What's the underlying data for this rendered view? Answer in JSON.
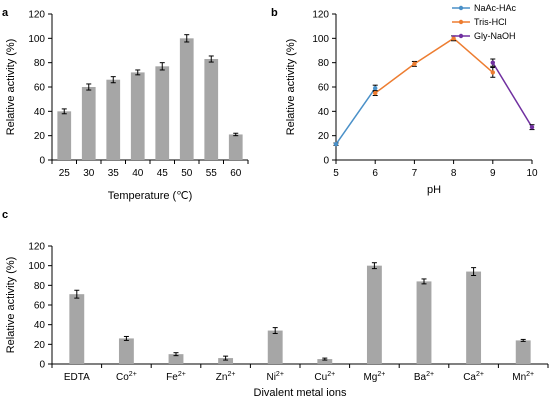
{
  "chart_data": [
    {
      "panel": "a",
      "type": "bar",
      "xlabel": "Temperature (℃)",
      "ylabel": "Relative activity (%)",
      "categories": [
        "25",
        "30",
        "35",
        "40",
        "45",
        "50",
        "55",
        "60"
      ],
      "values": [
        40,
        60,
        66,
        72,
        77,
        100,
        83,
        21
      ],
      "errors": [
        2,
        2.5,
        2.5,
        2,
        3,
        3,
        2.5,
        1
      ],
      "ylim": [
        0,
        120
      ],
      "yticks": [
        0,
        20,
        40,
        60,
        80,
        100,
        120
      ],
      "grid": false,
      "bar_color": "#a6a6a6"
    },
    {
      "panel": "b",
      "type": "line",
      "xlabel": "pH",
      "ylabel": "Relative activity (%)",
      "xlim": [
        5,
        10
      ],
      "ylim": [
        0,
        120
      ],
      "xticks": [
        5,
        6,
        7,
        8,
        9,
        10
      ],
      "yticks": [
        0,
        20,
        40,
        60,
        80,
        100,
        120
      ],
      "grid": false,
      "legend_position": "top-right",
      "series": [
        {
          "name": "NaAc-HAc",
          "color": "#4a90c8",
          "x": [
            5,
            6
          ],
          "values": [
            13,
            59
          ],
          "errors": [
            1,
            2.5
          ]
        },
        {
          "name": "Tris-HCl",
          "color": "#ed7d31",
          "x": [
            6,
            7,
            8,
            9
          ],
          "values": [
            55,
            79,
            100,
            72
          ],
          "errors": [
            2,
            2,
            2,
            4
          ]
        },
        {
          "name": "Gly-NaOH",
          "color": "#7030a0",
          "x": [
            9,
            10
          ],
          "values": [
            80,
            27
          ],
          "errors": [
            3,
            2
          ]
        }
      ]
    },
    {
      "panel": "c",
      "type": "bar",
      "xlabel": "Divalent metal ions",
      "ylabel": "Relative activity (%)",
      "categories": [
        {
          "base": "EDTA",
          "sup": ""
        },
        {
          "base": "Co",
          "sup": "2+"
        },
        {
          "base": "Fe",
          "sup": "2+"
        },
        {
          "base": "Zn",
          "sup": "2+"
        },
        {
          "base": "Ni",
          "sup": "2+"
        },
        {
          "base": "Cu",
          "sup": "2+"
        },
        {
          "base": "Mg",
          "sup": "2+"
        },
        {
          "base": "Ba",
          "sup": "2+"
        },
        {
          "base": "Ca",
          "sup": "2+"
        },
        {
          "base": "Mn",
          "sup": "2+"
        }
      ],
      "values": [
        71,
        26,
        10,
        6,
        34,
        5,
        100,
        84,
        94,
        24
      ],
      "errors": [
        4,
        2,
        1.5,
        2,
        3,
        1,
        3,
        2.5,
        4,
        1
      ],
      "ylim": [
        0,
        120
      ],
      "yticks": [
        0,
        20,
        40,
        60,
        80,
        100,
        120
      ],
      "grid": false,
      "bar_color": "#a6a6a6"
    }
  ]
}
